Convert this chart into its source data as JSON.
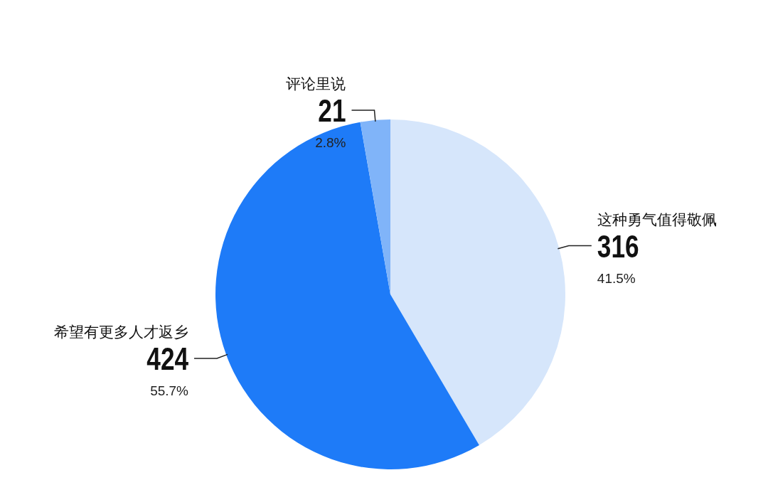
{
  "chart_data": {
    "type": "pie",
    "categories": [
      "这种勇气值得敬佩",
      "希望有更多人才返乡",
      "评论里说"
    ],
    "values": [
      316,
      424,
      21
    ],
    "colors": [
      "#d6e6fb",
      "#1e7bf8",
      "#80b4f9"
    ],
    "data_labels": true,
    "annotations": [
      "41.5%",
      "55.7%",
      "2.8%"
    ]
  }
}
